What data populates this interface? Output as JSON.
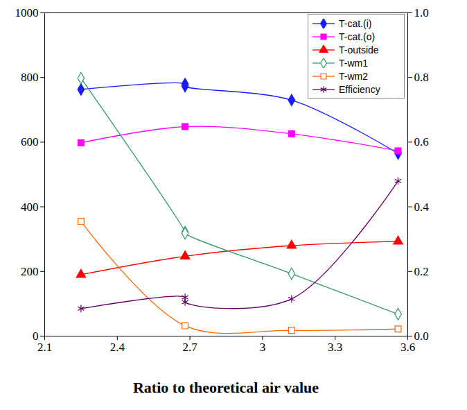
{
  "chart_data": {
    "type": "line",
    "x_label": "Ratio to theoretical air value",
    "xlim": [
      2.1,
      3.6
    ],
    "xticks": [
      2.1,
      2.4,
      2.7,
      3,
      3.3,
      3.6
    ],
    "ylim": [
      0,
      1000
    ],
    "yticks": [
      0,
      200,
      400,
      600,
      800,
      1000
    ],
    "y2lim": [
      0,
      1
    ],
    "y2ticks": [
      {
        "value": 0,
        "label": "0.0"
      },
      {
        "value": 0.2,
        "label": "0.2"
      },
      {
        "value": 0.4,
        "label": "0.4"
      },
      {
        "value": 0.6,
        "label": "0.6"
      },
      {
        "value": 0.8,
        "label": "0.8"
      },
      {
        "value": 1,
        "label": "1.0"
      }
    ],
    "legend": "top-right",
    "grid": false,
    "series": [
      {
        "name": "T-cat.(i)",
        "color": "#1a1aff",
        "marker": "diamond",
        "x": [
          2.25,
          2.68,
          2.68,
          3.12,
          3.56
        ],
        "values": [
          763,
          780,
          773,
          730,
          565
        ]
      },
      {
        "name": "T-cat.(o)",
        "color": "#ff00ff",
        "marker": "square",
        "x": [
          2.25,
          2.68,
          3.12,
          3.56
        ],
        "values": [
          598,
          648,
          626,
          573
        ]
      },
      {
        "name": "T-outside",
        "color": "#ff0000",
        "marker": "triangle",
        "x": [
          2.25,
          2.68,
          3.12,
          3.56
        ],
        "values": [
          190,
          247,
          280,
          293
        ]
      },
      {
        "name": "T-wm1",
        "color": "#339966",
        "marker": "open diamond",
        "x": [
          2.25,
          2.68,
          2.68,
          3.12,
          3.56
        ],
        "values": [
          798,
          322,
          318,
          193,
          68
        ]
      },
      {
        "name": "T-wm2",
        "color": "#ff6600",
        "marker": "open square",
        "x": [
          2.25,
          2.68,
          3.12,
          3.56
        ],
        "values": [
          355,
          32,
          18,
          22
        ]
      },
      {
        "name": "Efficiency",
        "color": "#660066",
        "marker": "asterisk",
        "axis": "y2",
        "x": [
          2.25,
          2.68,
          2.68,
          3.12,
          3.56
        ],
        "values": [
          0.085,
          0.12,
          0.105,
          0.115,
          0.48
        ]
      }
    ]
  }
}
